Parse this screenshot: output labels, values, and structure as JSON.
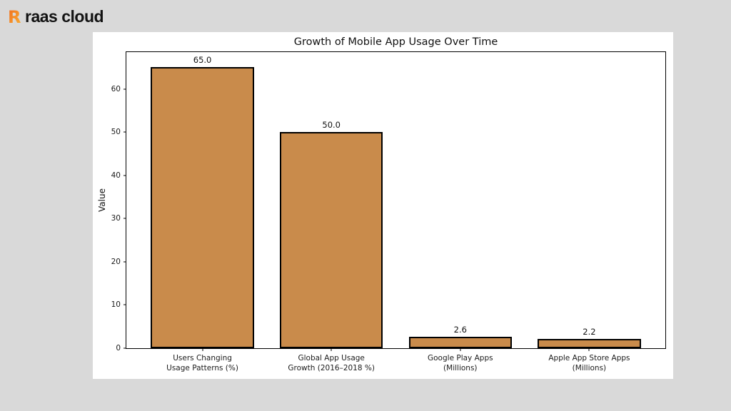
{
  "page": {
    "background_color": "#D9D9D9",
    "panel_color": "#FFFFFF"
  },
  "logo": {
    "text": "raas cloud",
    "icon": "raas-logo-icon",
    "icon_gradient_start": "#F06A1D",
    "icon_gradient_end": "#F9B234",
    "text_color": "#121212"
  },
  "chart_data": {
    "type": "bar",
    "title": "Growth of Mobile App Usage Over Time",
    "xlabel": "",
    "ylabel": "Value",
    "categories": [
      "Users Changing\nUsage Patterns (%)",
      "Global App Usage\nGrowth (2016–2018 %)",
      "Google Play Apps\n(Millions)",
      "Apple App Store Apps\n(Millions)"
    ],
    "values": [
      65.0,
      50.0,
      2.6,
      2.2
    ],
    "bar_labels": [
      "65.0",
      "50.0",
      "2.6",
      "2.2"
    ],
    "yticks": [
      0,
      10,
      20,
      30,
      40,
      50,
      60
    ],
    "ylim": [
      0,
      68.5
    ],
    "bar_color": "#C98B4B",
    "bar_edge_color": "#000000",
    "grid": false,
    "legend": "none"
  }
}
